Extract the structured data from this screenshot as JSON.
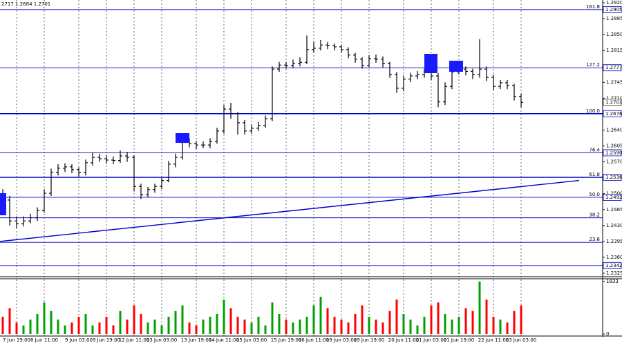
{
  "chart_data": {
    "type": "candlestick",
    "header": "2717 1.2684 1.2701",
    "categories": [
      null,
      null,
      "7 Jun 19:00",
      null,
      null,
      null,
      "8 Jun 11:00",
      null,
      null,
      null,
      null,
      "9 Jun 03:00",
      null,
      null,
      null,
      "9 Jun 19:00",
      null,
      null,
      null,
      "12 Jun 11:00",
      null,
      null,
      null,
      "13 Jun 03:00",
      null,
      null,
      null,
      null,
      "13 Jun 19:00",
      null,
      null,
      null,
      "14 Jun 11:00",
      null,
      null,
      null,
      "15 Jun 03:00",
      null,
      null,
      null,
      null,
      "15 Jun 19:00",
      null,
      null,
      null,
      "16 Jun 11:00",
      null,
      null,
      null,
      "19 Jun 03:00",
      null,
      null,
      null,
      "19 Jun 19:00",
      null,
      null,
      null,
      null,
      "20 Jun 11:00",
      null,
      null,
      null,
      "21 Jun 03:00",
      null,
      null,
      null,
      "21 Jun 19:00",
      null,
      null,
      null,
      null,
      "22 Jun 11:00",
      null,
      null,
      null,
      "23 Jun 03:00"
    ],
    "series": [
      {
        "color": "#000000",
        "open": [
          1.25,
          1.2486,
          1.244,
          1.2434,
          1.244,
          1.2447,
          1.2463,
          1.2501,
          1.2547,
          1.2556,
          1.2559,
          1.2553,
          1.2547,
          1.2568,
          1.258,
          1.2577,
          1.2574,
          1.2573,
          1.2583,
          1.258,
          1.2516,
          1.2498,
          1.2509,
          1.2516,
          1.2529,
          1.2565,
          1.258,
          1.2615,
          1.261,
          1.2607,
          1.2607,
          1.2615,
          1.2638,
          1.2686,
          1.2676,
          1.2656,
          1.2638,
          1.2644,
          1.265,
          1.2665,
          1.2774,
          1.2783,
          1.2782,
          1.2786,
          1.2789,
          1.2817,
          1.282,
          1.2827,
          1.2826,
          1.2823,
          1.2817,
          1.2805,
          1.2796,
          1.2782,
          1.2797,
          1.2796,
          1.2786,
          1.2762,
          1.2732,
          1.2752,
          1.2759,
          1.2762,
          1.2768,
          1.2759,
          1.2702,
          1.2736,
          1.2768,
          1.2774,
          1.2769,
          1.2762,
          1.2774,
          1.2756,
          1.2736,
          1.2744,
          1.2738,
          1.2714
        ],
        "high": [
          1.251,
          1.2495,
          1.245,
          1.245,
          1.2456,
          1.247,
          1.251,
          1.2555,
          1.2565,
          1.2567,
          1.2565,
          1.2558,
          1.2575,
          1.259,
          1.2588,
          1.2585,
          1.2582,
          1.2595,
          1.2592,
          1.2585,
          1.2522,
          1.2515,
          1.2522,
          1.2535,
          1.2572,
          1.2588,
          1.2625,
          1.2622,
          1.2616,
          1.2615,
          1.2622,
          1.2645,
          1.2695,
          1.27,
          1.268,
          1.2662,
          1.2652,
          1.2658,
          1.2672,
          1.278,
          1.279,
          1.279,
          1.2795,
          1.28,
          1.2848,
          1.2835,
          1.2838,
          1.2834,
          1.283,
          1.2828,
          1.2822,
          1.281,
          1.28,
          1.2805,
          1.2806,
          1.2802,
          1.279,
          1.2768,
          1.276,
          1.2766,
          1.277,
          1.2775,
          1.2776,
          1.2765,
          1.2745,
          1.2775,
          1.2782,
          1.278,
          1.2775,
          1.284,
          1.278,
          1.2762,
          1.275,
          1.275,
          1.2742,
          1.272
        ],
        "low": [
          1.2475,
          1.243,
          1.2425,
          1.2428,
          1.2435,
          1.244,
          1.2458,
          1.2495,
          1.254,
          1.2548,
          1.2545,
          1.2538,
          1.254,
          1.2562,
          1.257,
          1.2566,
          1.2565,
          1.2568,
          1.257,
          1.2505,
          1.2488,
          1.2492,
          1.2502,
          1.251,
          1.2525,
          1.2558,
          1.2575,
          1.2602,
          1.2598,
          1.26,
          1.26,
          1.261,
          1.2632,
          1.2665,
          1.263,
          1.263,
          1.2632,
          1.2638,
          1.2645,
          1.266,
          1.2768,
          1.2775,
          1.2776,
          1.278,
          1.2785,
          1.281,
          1.2815,
          1.2818,
          1.2815,
          1.281,
          1.2798,
          1.2788,
          1.2775,
          1.2778,
          1.2788,
          1.2778,
          1.2755,
          1.2722,
          1.2725,
          1.2745,
          1.2752,
          1.2755,
          1.275,
          1.269,
          1.2695,
          1.273,
          1.2762,
          1.276,
          1.2752,
          1.2755,
          1.2748,
          1.2728,
          1.273,
          1.273,
          1.2705,
          1.269
        ],
        "close": [
          1.2486,
          1.244,
          1.2434,
          1.244,
          1.2447,
          1.2463,
          1.2501,
          1.2547,
          1.2556,
          1.2559,
          1.2553,
          1.2547,
          1.2568,
          1.258,
          1.2577,
          1.2574,
          1.2573,
          1.2583,
          1.258,
          1.2516,
          1.2498,
          1.2509,
          1.2516,
          1.2529,
          1.2565,
          1.258,
          1.2615,
          1.261,
          1.2607,
          1.2607,
          1.2615,
          1.2638,
          1.2686,
          1.2676,
          1.2656,
          1.2638,
          1.2644,
          1.265,
          1.2665,
          1.2774,
          1.2783,
          1.2782,
          1.2786,
          1.2789,
          1.2817,
          1.282,
          1.2827,
          1.2826,
          1.2823,
          1.2817,
          1.2805,
          1.2796,
          1.2782,
          1.2797,
          1.2796,
          1.2786,
          1.2762,
          1.2732,
          1.2752,
          1.2759,
          1.2762,
          1.2768,
          1.2759,
          1.2702,
          1.2736,
          1.2768,
          1.2774,
          1.2769,
          1.2762,
          1.2774,
          1.2756,
          1.2736,
          1.2744,
          1.2738,
          1.2714,
          1.2701
        ],
        "volume": [
          600,
          900,
          400,
          300,
          500,
          700,
          1100,
          800,
          500,
          300,
          400,
          600,
          700,
          300,
          400,
          600,
          300,
          800,
          500,
          1000,
          700,
          400,
          500,
          300,
          600,
          800,
          1000,
          400,
          300,
          500,
          600,
          700,
          1200,
          900,
          600,
          500,
          400,
          600,
          300,
          1100,
          700,
          500,
          400,
          500,
          600,
          1000,
          1300,
          900,
          600,
          500,
          400,
          700,
          1000,
          600,
          500,
          400,
          800,
          1200,
          700,
          500,
          300,
          600,
          1000,
          1100,
          700,
          500,
          600,
          900,
          800,
          1833,
          1200,
          600,
          500,
          400,
          800,
          1000
        ]
      }
    ],
    "volume_up_color": "#00a000",
    "volume_down_color": "#ff0000",
    "ylim": [
      1.2325,
      1.292
    ],
    "yticks": [
      {
        "value": 1.292,
        "label": "1.2920"
      },
      1.2885,
      {
        "value": 1.285,
        "label": "1.2850"
      },
      1.2815,
      1.2745,
      {
        "value": 1.271,
        "label": "1.2710"
      },
      {
        "value": 1.264,
        "label": "1.2640"
      },
      1.2605,
      {
        "value": 1.257,
        "label": "1.2570"
      },
      {
        "value": 1.25,
        "label": "1.2500"
      },
      1.2465,
      {
        "value": 1.243,
        "label": "1.2430"
      },
      1.2395,
      {
        "value": 1.236,
        "label": "1.2360"
      },
      1.2325
    ],
    "last_price": {
      "value": 1.2701,
      "label": "1.2701"
    },
    "volume_ylim": [
      0,
      1833
    ],
    "volume_yticks": [
      1833,
      0
    ],
    "level_color": "#0000cc",
    "levels": [
      {
        "name": "161.8",
        "value": 1.2905,
        "label": "1.2905"
      },
      {
        "name": "127.2",
        "value": 1.2777,
        "label": "1.2777"
      },
      {
        "name": "100.0",
        "value": 1.2676,
        "label": "1.2676",
        "bold": true
      },
      {
        "name": "76.4",
        "value": 1.259,
        "label": "1.2590"
      },
      {
        "name": "61.8",
        "value": 1.2536,
        "label": "1.2536",
        "bold": true
      },
      {
        "name": "50.0",
        "value": 1.2492,
        "label": "1.2492"
      },
      {
        "name": "38.2",
        "value": 1.2447
      },
      {
        "name": "23.6",
        "value": 1.2393
      },
      {
        "value": 1.2342,
        "label": "1.2342"
      }
    ],
    "trendline": {
      "x": [
        -0.4,
        83.4
      ],
      "values": [
        1.2395,
        1.2529
      ]
    }
  }
}
